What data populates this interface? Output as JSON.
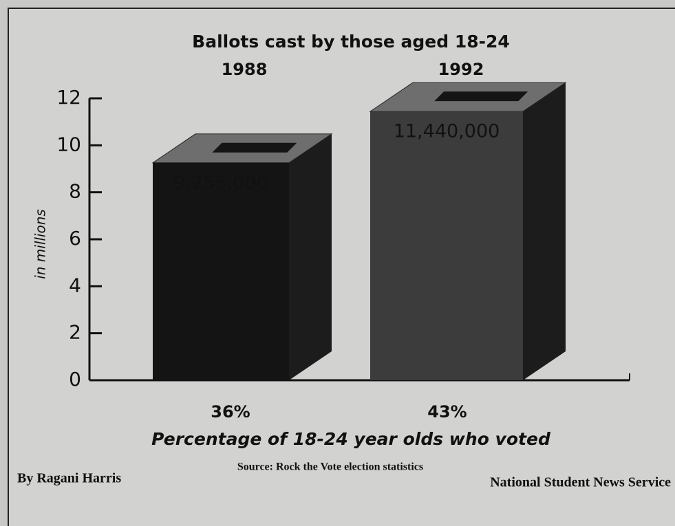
{
  "chart_data": {
    "type": "bar",
    "title": "Ballots cast by those aged 18-24",
    "y_label": "in millions",
    "categories": [
      "1988",
      "1992"
    ],
    "values": [
      9.255,
      11.44
    ],
    "value_labels": [
      "9,255,000",
      "11,440,000"
    ],
    "colors": [
      "#141414",
      "#3c3c3c"
    ],
    "ylim": [
      0,
      12
    ],
    "yticks": [
      0,
      2,
      4,
      6,
      8,
      10,
      12
    ],
    "grid": false,
    "turnout": {
      "label": "Percentage of 18-24 year olds who voted",
      "values": [
        36,
        43
      ],
      "value_labels": [
        "36%",
        "43%"
      ]
    },
    "source": "Source: Rock the Vote election statistics",
    "credit": "By Ragani Harris",
    "agency": "National Student News Service"
  }
}
